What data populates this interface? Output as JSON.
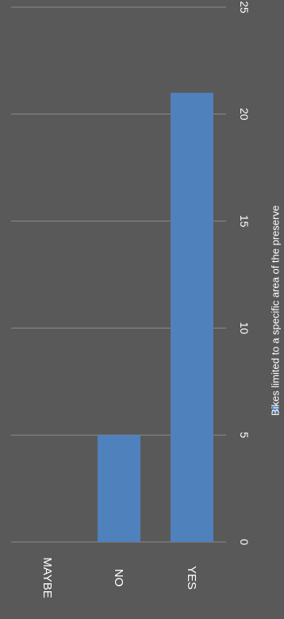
{
  "chart_data": {
    "type": "bar",
    "orientation": "rotated-90-clockwise",
    "categories": [
      "MAYBE",
      "NO",
      "YES"
    ],
    "series": [
      {
        "name": "Bikes limited to a specific area of the preserve",
        "values": [
          0,
          5,
          21
        ],
        "color": "#4f81bd"
      }
    ],
    "ylim": [
      0,
      25
    ],
    "yticks": [
      0,
      5,
      10,
      15,
      20,
      25
    ],
    "grid": true,
    "legend": "bottom",
    "background": "#595959",
    "gridline_color": "#8c8c8c"
  }
}
